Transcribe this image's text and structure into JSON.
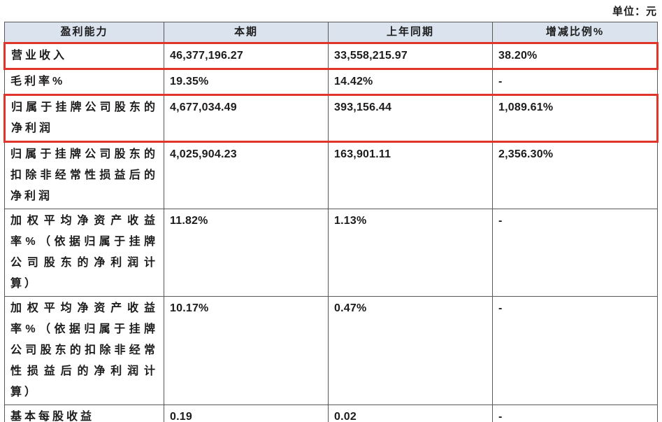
{
  "unit_label": "单位：元",
  "table": {
    "header_bg": "#dbe3ef",
    "highlight_color": "#e0352b",
    "headers": [
      "盈利能力",
      "本期",
      "上年同期",
      "增减比例%"
    ],
    "rows": [
      {
        "label": "营业收入",
        "current": "46,377,196.27",
        "prior": "33,558,215.97",
        "change": "38.20%",
        "highlight": true
      },
      {
        "label": "毛利率%",
        "current": "19.35%",
        "prior": "14.42%",
        "change": "-",
        "highlight": false
      },
      {
        "label": "归属于挂牌公司股东的净利润",
        "current": "4,677,034.49",
        "prior": "393,156.44",
        "change": "1,089.61%",
        "highlight": true
      },
      {
        "label": "归属于挂牌公司股东的扣除非经常性损益后的净利润",
        "current": "4,025,904.23",
        "prior": "163,901.11",
        "change": "2,356.30%",
        "highlight": false
      },
      {
        "label": "加权平均净资产收益率%（依据归属于挂牌公司股东的净利润计算）",
        "current": "11.82%",
        "prior": "1.13%",
        "change": "-",
        "highlight": false
      },
      {
        "label": "加权平均净资产收益率%（依据归属于挂牌公司股东的扣除非经常性损益后的净利润计算）",
        "current": "10.17%",
        "prior": "0.47%",
        "change": "-",
        "highlight": false
      },
      {
        "label": "基本每股收益",
        "current": "0.19",
        "prior": "0.02",
        "change": "-",
        "highlight": false
      }
    ]
  }
}
